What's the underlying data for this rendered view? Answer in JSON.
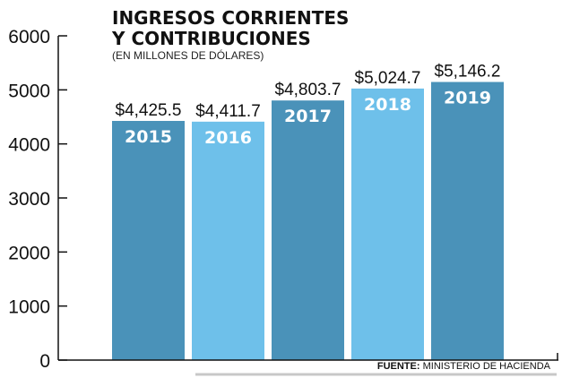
{
  "chart_data": {
    "type": "bar",
    "title_line1": "INGRESOS CORRIENTES",
    "title_line2": "Y CONTRIBUCIONES",
    "subtitle": "(EN MILLONES DE DÓLARES)",
    "categories": [
      "2015",
      "2016",
      "2017",
      "2018",
      "2019"
    ],
    "values": [
      4425.5,
      4411.7,
      4803.7,
      5024.7,
      5146.2
    ],
    "value_labels": [
      "$4,425.5",
      "$4,411.7",
      "$4,803.7",
      "$5,024.7",
      "$5,146.2"
    ],
    "ylim": [
      0,
      6000
    ],
    "yticks": [
      "0",
      "1000",
      "2000",
      "3000",
      "4000",
      "5000",
      "6000"
    ],
    "xlabel": "",
    "ylabel": "",
    "grid": false,
    "colors": [
      "#4a92b9",
      "#6ec0ea",
      "#4a92b9",
      "#6ec0ea",
      "#4a92b9"
    ],
    "source_label": "FUENTE:",
    "source_text": "MINISTERIO DE HACIENDA"
  }
}
